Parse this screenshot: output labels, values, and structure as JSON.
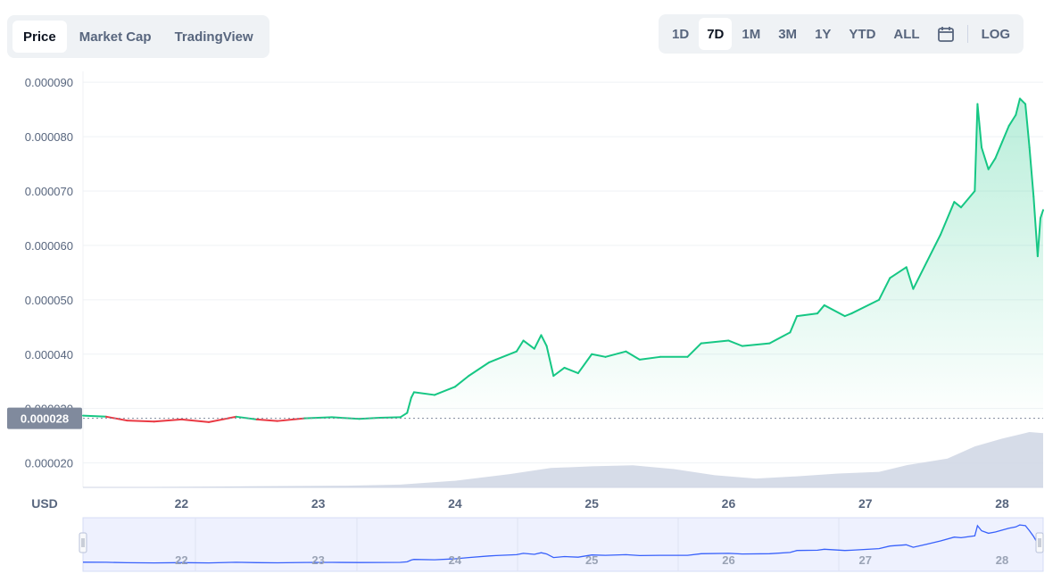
{
  "tabs_left": [
    {
      "label": "Price",
      "active": true
    },
    {
      "label": "Market Cap",
      "active": false
    },
    {
      "label": "TradingView",
      "active": false
    }
  ],
  "ranges": [
    {
      "label": "1D",
      "active": false
    },
    {
      "label": "7D",
      "active": true
    },
    {
      "label": "1M",
      "active": false
    },
    {
      "label": "3M",
      "active": false
    },
    {
      "label": "1Y",
      "active": false
    },
    {
      "label": "YTD",
      "active": false
    },
    {
      "label": "ALL",
      "active": false
    }
  ],
  "calendar_icon": "calendar-icon",
  "log_label": "LOG",
  "colors": {
    "up": "#16c784",
    "down": "#ea3943",
    "volume": "#cfd6e4",
    "navigator_line": "#3861fb",
    "navigator_bg": "#eef1fe",
    "axis_text": "#58667e"
  },
  "chart_data": {
    "type": "line",
    "currency_label": "USD",
    "price_marker_label": "0.000028",
    "baseline": 2.82e-05,
    "y_ticks": [
      "0.000020",
      "0.000030",
      "0.000040",
      "0.000050",
      "0.000060",
      "0.000070",
      "0.000080",
      "0.000090"
    ],
    "ylim": [
      1.55e-05,
      9.2e-05
    ],
    "x_ticks": [
      "22",
      "23",
      "24",
      "25",
      "26",
      "27",
      "28"
    ],
    "xlim": [
      21.28,
      28.3
    ],
    "grid": true,
    "series": [
      {
        "x": [
          21.28,
          21.45,
          21.6,
          21.8,
          22.0,
          22.2,
          22.4,
          22.55,
          22.7,
          22.9,
          23.1,
          23.3,
          23.45,
          23.6,
          23.65,
          23.68,
          23.7,
          23.85,
          24.0,
          24.1,
          24.25,
          24.3,
          24.45,
          24.5,
          24.58,
          24.63,
          24.67,
          24.72,
          24.8,
          24.9,
          25.0,
          25.1,
          25.25,
          25.35,
          25.5,
          25.7,
          25.8,
          26.0,
          26.1,
          26.3,
          26.45,
          26.5,
          26.65,
          26.7,
          26.85,
          26.9,
          27.1,
          27.18,
          27.3,
          27.35,
          27.45,
          27.55,
          27.65,
          27.7,
          27.8,
          27.82,
          27.85,
          27.9,
          27.95,
          28.0,
          28.05,
          28.1,
          28.13,
          28.17,
          28.2,
          28.23,
          28.26,
          28.28,
          28.3
        ],
        "y": [
          2.87e-05,
          2.85e-05,
          2.78e-05,
          2.76e-05,
          2.8e-05,
          2.75e-05,
          2.85e-05,
          2.8e-05,
          2.77e-05,
          2.82e-05,
          2.84e-05,
          2.81e-05,
          2.83e-05,
          2.84e-05,
          2.92e-05,
          3.2e-05,
          3.3e-05,
          3.25e-05,
          3.4e-05,
          3.6e-05,
          3.85e-05,
          3.9e-05,
          4.05e-05,
          4.25e-05,
          4.1e-05,
          4.35e-05,
          4.15e-05,
          3.6e-05,
          3.75e-05,
          3.65e-05,
          4e-05,
          3.95e-05,
          4.05e-05,
          3.9e-05,
          3.95e-05,
          3.95e-05,
          4.2e-05,
          4.25e-05,
          4.15e-05,
          4.2e-05,
          4.4e-05,
          4.7e-05,
          4.75e-05,
          4.9e-05,
          4.7e-05,
          4.75e-05,
          5e-05,
          5.4e-05,
          5.6e-05,
          5.2e-05,
          5.7e-05,
          6.2e-05,
          6.8e-05,
          6.7e-05,
          7e-05,
          8.6e-05,
          7.8e-05,
          7.4e-05,
          7.6e-05,
          7.9e-05,
          8.2e-05,
          8.4e-05,
          8.7e-05,
          8.6e-05,
          7.8e-05,
          6.9e-05,
          5.8e-05,
          6.5e-05,
          6.65e-05
        ]
      }
    ]
  }
}
